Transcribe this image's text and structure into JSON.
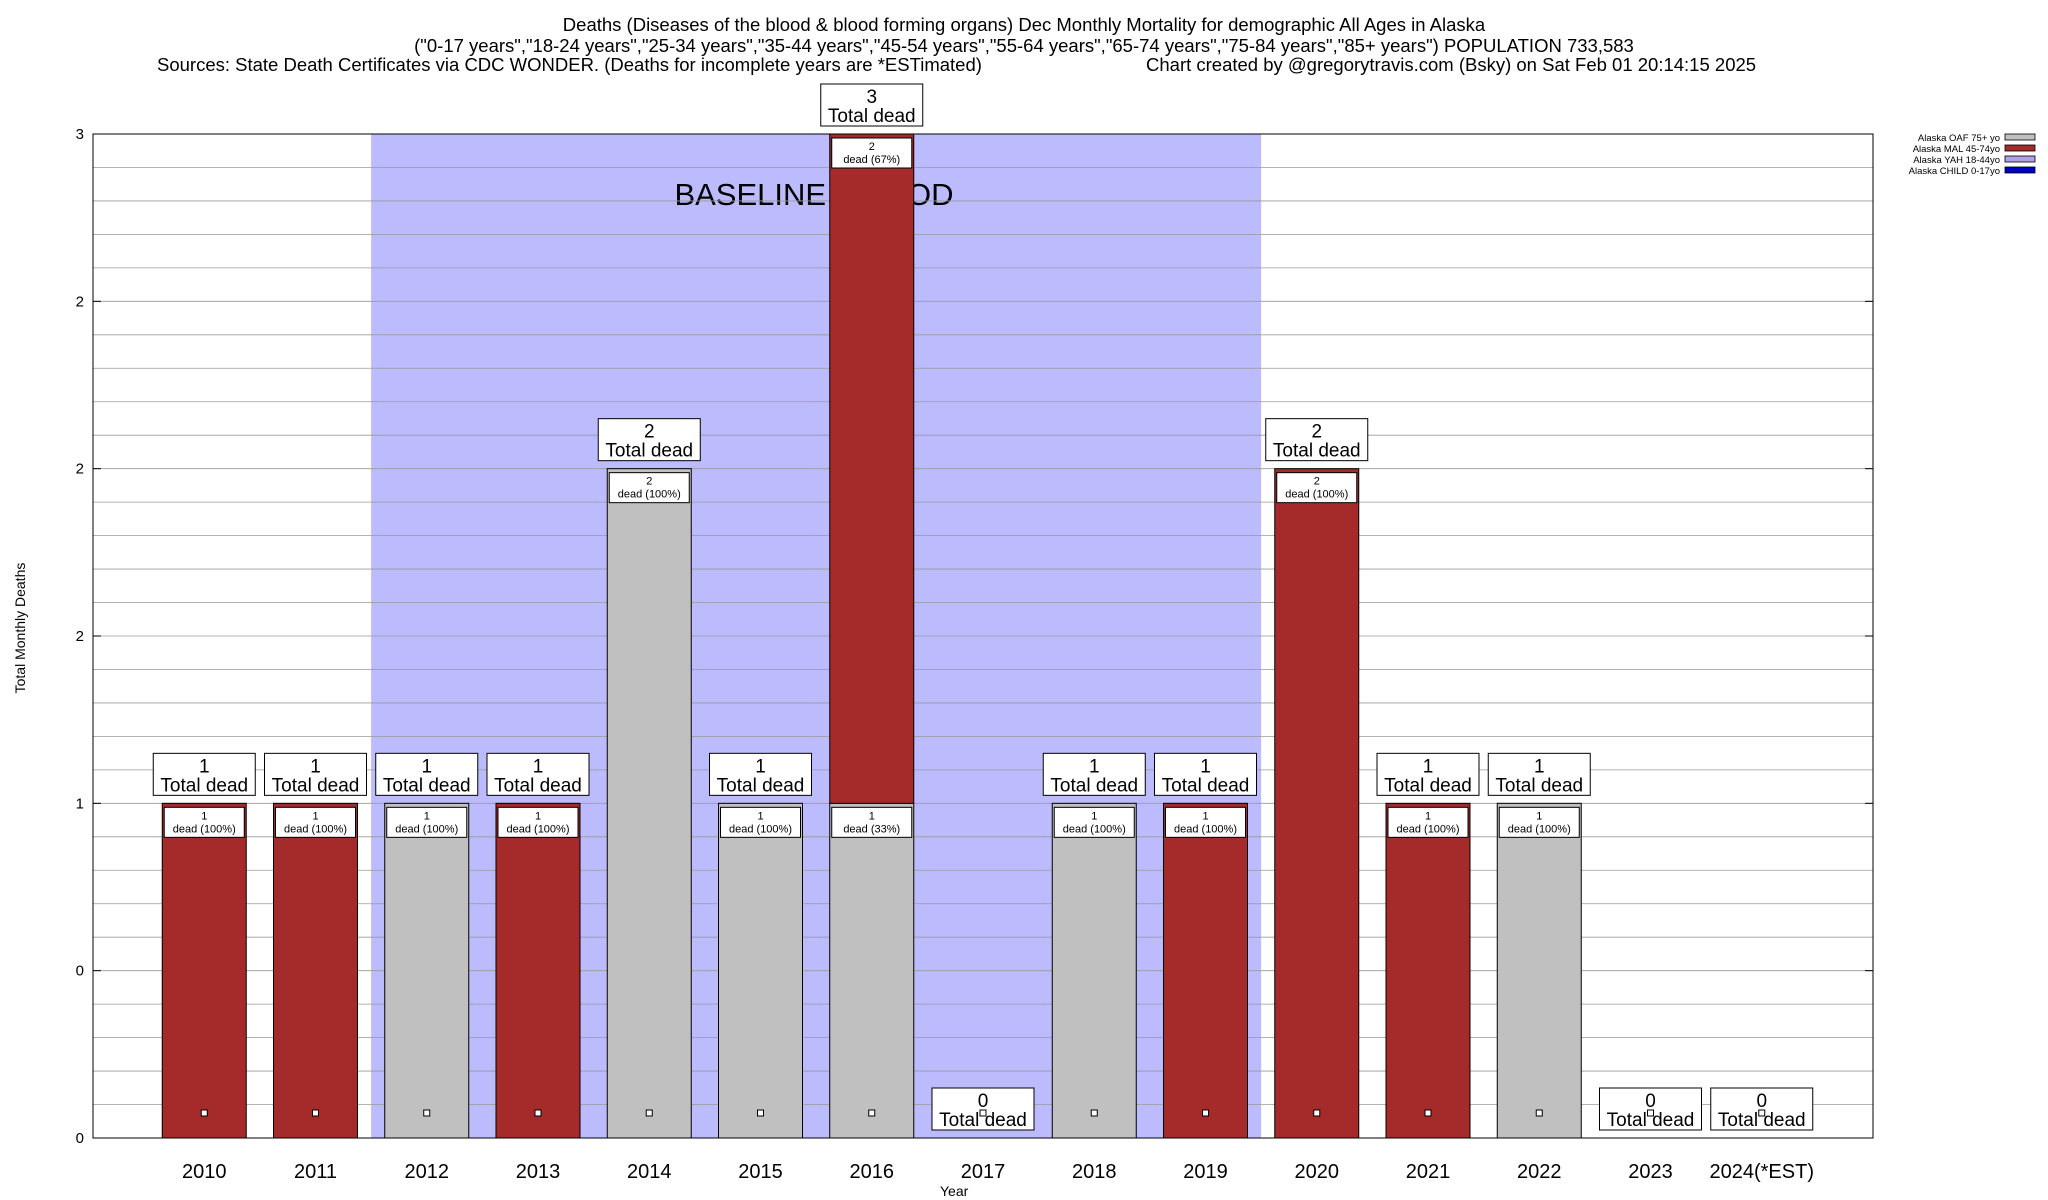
{
  "title": {
    "line1": "Deaths (Diseases of the blood & blood forming organs) Dec Monthly Mortality for demographic All Ages in Alaska",
    "line2": "(\"0-17 years\",\"18-24 years\",\"25-34 years\",\"35-44 years\",\"45-54 years\",\"55-64 years\",\"65-74 years\",\"75-84 years\",\"85+ years\") POPULATION 733,583",
    "sources": "Sources: State Death Certificates via CDC WONDER. (Deaths for incomplete years are *ESTimated)",
    "credit": "Chart created by @gregorytravis.com (Bsky) on Sat Feb 01 20:14:15 2025"
  },
  "chart_data": {
    "type": "bar",
    "stacked": true,
    "xlabel": "Year",
    "ylabel": "Total Monthly Deaths",
    "ylim": [
      0,
      3
    ],
    "y_tick_labels": [
      "0",
      "0",
      "1",
      "2",
      "2",
      "2",
      "3"
    ],
    "grid": true,
    "legend_position": "top-right",
    "categories": [
      "2010",
      "2011",
      "2012",
      "2013",
      "2014",
      "2015",
      "2016",
      "2017",
      "2018",
      "2019",
      "2020",
      "2021",
      "2022",
      "2023",
      "2024(*EST)"
    ],
    "series": [
      {
        "name": "Alaska OAF 75+ yo",
        "color": "#c0c0c0",
        "values": [
          0,
          0,
          1,
          0,
          2,
          1,
          1,
          0,
          1,
          0,
          0,
          0,
          1,
          0,
          0
        ]
      },
      {
        "name": "Alaska MAL 45-74yo",
        "color": "#a52a2a",
        "values": [
          1,
          1,
          0,
          1,
          0,
          0,
          2,
          0,
          0,
          1,
          2,
          1,
          0,
          0,
          0
        ]
      },
      {
        "name": "Alaska YAH 18-44yo",
        "color": "#b0a0e8",
        "values": [
          0,
          0,
          0,
          0,
          0,
          0,
          0,
          0,
          0,
          0,
          0,
          0,
          0,
          0,
          0
        ]
      },
      {
        "name": "Alaska CHILD 0-17yo",
        "color": "#0000c8",
        "values": [
          0,
          0,
          0,
          0,
          0,
          0,
          0,
          0,
          0,
          0,
          0,
          0,
          0,
          0,
          0
        ]
      }
    ],
    "totals": [
      1,
      1,
      1,
      1,
      2,
      1,
      3,
      0,
      1,
      1,
      2,
      1,
      1,
      0,
      0
    ],
    "total_label": "Total dead",
    "segment_labels": [
      [
        {
          "series": 1,
          "count": "1",
          "pct": "dead (100%)"
        }
      ],
      [
        {
          "series": 1,
          "count": "1",
          "pct": "dead (100%)"
        }
      ],
      [
        {
          "series": 0,
          "count": "1",
          "pct": "dead (100%)"
        }
      ],
      [
        {
          "series": 1,
          "count": "1",
          "pct": "dead (100%)"
        }
      ],
      [
        {
          "series": 0,
          "count": "2",
          "pct": "dead (100%)"
        }
      ],
      [
        {
          "series": 0,
          "count": "1",
          "pct": "dead (100%)"
        }
      ],
      [
        {
          "series": 1,
          "count": "2",
          "pct": "dead (67%)"
        },
        {
          "series": 0,
          "count": "1",
          "pct": "dead (33%)"
        }
      ],
      [],
      [
        {
          "series": 0,
          "count": "1",
          "pct": "dead (100%)"
        }
      ],
      [
        {
          "series": 1,
          "count": "1",
          "pct": "dead (100%)"
        }
      ],
      [
        {
          "series": 1,
          "count": "2",
          "pct": "dead (100%)"
        }
      ],
      [
        {
          "series": 1,
          "count": "1",
          "pct": "dead (100%)"
        }
      ],
      [
        {
          "series": 0,
          "count": "1",
          "pct": "dead (100%)"
        }
      ],
      [],
      []
    ],
    "baseline_period": {
      "label": "BASELINE PERIOD",
      "from": "2012",
      "to": "2019",
      "color": "#bbbbfd"
    }
  }
}
